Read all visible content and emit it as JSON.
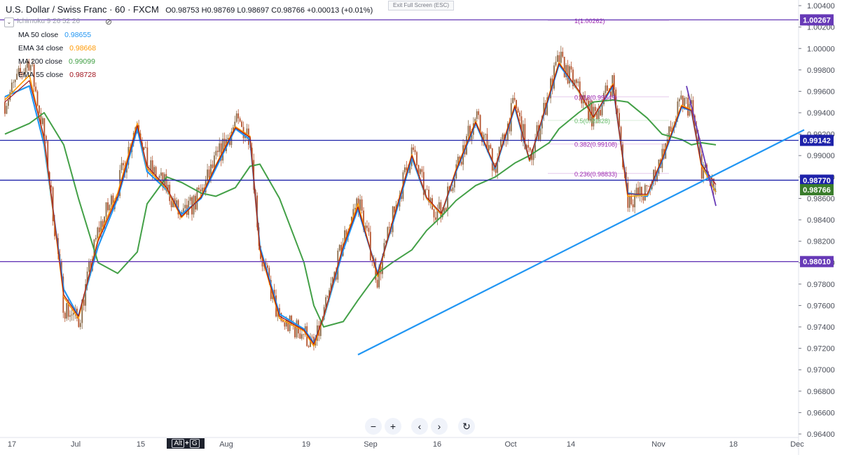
{
  "header": {
    "title": "U.S. Dollar / Swiss Franc · 60 · FXCM",
    "ohlc": "O0.98753  H0.98769  L0.98697  C0.98766  +0.00013 (+0.01%)"
  },
  "exit_fullscreen": "Exit Full Screen (ESC)",
  "ichimoku_label": "Ichimoku 9 26 52 26",
  "indicators": [
    {
      "label": "MA  50 close",
      "value": "0.98655",
      "color": "#2196f3"
    },
    {
      "label": "EMA 34 close",
      "value": "0.98668",
      "color": "#ff9800"
    },
    {
      "label": "MA  200 close",
      "value": "0.99099",
      "color": "#43a047"
    },
    {
      "label": "EMA 55 close",
      "value": "0.98728",
      "color": "#a0141e"
    }
  ],
  "toolbar": {
    "zoom_out": "−",
    "zoom_in": "+",
    "back": "‹",
    "forward": "›",
    "reset": "↻"
  },
  "shortcut": {
    "key1": "Alt",
    "plus": "+",
    "key2": "G"
  },
  "colors": {
    "purple_line": "#673ab7",
    "blue_line": "#1e22aa",
    "trend": "#2196f3",
    "candle_up": "#7a5a3a",
    "price_badge": "#3a7d2c"
  },
  "chart_data": {
    "type": "line",
    "symbol": "USDCHF",
    "timeframe": "60",
    "ylim": [
      0.964,
      1.0042
    ],
    "y_ticks": [
      "1.00400",
      "1.00200",
      "1.00000",
      "0.99800",
      "0.99600",
      "0.99400",
      "0.99200",
      "0.99000",
      "0.98800",
      "0.98600",
      "0.98400",
      "0.98200",
      "0.98000",
      "0.97800",
      "0.97600",
      "0.97400",
      "0.97200",
      "0.97000",
      "0.96800",
      "0.96600",
      "0.96400"
    ],
    "x_ticks": [
      "17",
      "Jul",
      "15",
      "Aug",
      "19",
      "Sep",
      "16",
      "Oct",
      "14",
      "Nov",
      "18",
      "Dec"
    ],
    "horizontal_levels": [
      {
        "value": 1.00267,
        "label": "1.00267",
        "color": "#673ab7"
      },
      {
        "value": 0.99142,
        "label": "0.99142",
        "color": "#1e22aa"
      },
      {
        "value": 0.9877,
        "label": "0.98770",
        "color": "#1e22aa"
      },
      {
        "value": 0.9801,
        "label": "0.98010",
        "color": "#673ab7"
      }
    ],
    "last_price": {
      "value": 0.98766,
      "label": "0.98766"
    },
    "fibonacci": [
      {
        "ratio": "1",
        "price": "(1.00262)"
      },
      {
        "ratio": "0.618",
        "price": "(0.99549)"
      },
      {
        "ratio": "0.5",
        "price": "(0.99328)"
      },
      {
        "ratio": "0.382",
        "price": "(0.99108)"
      },
      {
        "ratio": "0.236",
        "price": "(0.98833)"
      }
    ],
    "trendline": {
      "from": {
        "x": "Aug 23",
        "y": 0.9714
      },
      "to": {
        "x": "Nov 22",
        "y": 0.9924
      }
    },
    "downtrend": {
      "from": {
        "x": "Oct 29",
        "y": 0.9965
      },
      "to": {
        "x": "Nov 4",
        "y": 0.9853
      }
    },
    "close_path": {
      "x": [
        "Jun 12",
        "Jun 17",
        "Jun 20",
        "Jun 24",
        "Jun 27",
        "Jul 1",
        "Jul 5",
        "Jul 9",
        "Jul 11",
        "Jul 15",
        "Jul 18",
        "Jul 22",
        "Jul 25",
        "Jul 29",
        "Aug 1",
        "Aug 3",
        "Aug 7",
        "Aug 12",
        "Aug 14",
        "Aug 16",
        "Aug 20",
        "Aug 23",
        "Aug 27",
        "Aug 30",
        "Sep 3",
        "Sep 6",
        "Sep 9",
        "Sep 12",
        "Sep 16",
        "Sep 20",
        "Sep 24",
        "Sep 27",
        "Oct 1",
        "Oct 3",
        "Oct 7",
        "Oct 10",
        "Oct 14",
        "Oct 17",
        "Oct 21",
        "Oct 24",
        "Oct 28",
        "Oct 30",
        "Nov 1",
        "Nov 4"
      ],
      "values": [
        0.995,
        0.999,
        0.992,
        0.976,
        0.9745,
        0.983,
        0.987,
        0.9935,
        0.989,
        0.987,
        0.984,
        0.9865,
        0.9895,
        0.993,
        0.992,
        0.981,
        0.9745,
        0.9735,
        0.972,
        0.975,
        0.982,
        0.986,
        0.9785,
        0.984,
        0.9905,
        0.986,
        0.9845,
        0.989,
        0.9935,
        0.989,
        0.995,
        0.9895,
        0.996,
        0.999,
        0.996,
        0.9935,
        0.997,
        0.986,
        0.9865,
        0.99,
        0.995,
        0.9945,
        0.989,
        0.9865
      ]
    },
    "series": [
      {
        "name": "MA 50 close",
        "values": [
          0.9955,
          0.9965,
          0.991,
          0.9775,
          0.975,
          0.9815,
          0.986,
          0.9925,
          0.9885,
          0.9868,
          0.9845,
          0.986,
          0.9888,
          0.9925,
          0.9915,
          0.9815,
          0.9752,
          0.9738,
          0.9725,
          0.9748,
          0.9812,
          0.985,
          0.979,
          0.9835,
          0.9898,
          0.986,
          0.9845,
          0.9885,
          0.993,
          0.9888,
          0.9945,
          0.9895,
          0.9955,
          0.9985,
          0.996,
          0.9935,
          0.9965,
          0.9865,
          0.9862,
          0.9895,
          0.9945,
          0.9942,
          0.9893,
          0.9866
        ]
      },
      {
        "name": "EMA 34 close",
        "values": [
          0.9952,
          0.9975,
          0.9915,
          0.9768,
          0.9748,
          0.9822,
          0.9865,
          0.993,
          0.9888,
          0.9869,
          0.9842,
          0.9862,
          0.9891,
          0.9927,
          0.9918,
          0.9812,
          0.9748,
          0.9736,
          0.9722,
          0.9749,
          0.9816,
          0.9855,
          0.9787,
          0.9838,
          0.9901,
          0.986,
          0.9845,
          0.9887,
          0.9932,
          0.9889,
          0.9947,
          0.9895,
          0.9957,
          0.9987,
          0.996,
          0.9935,
          0.9967,
          0.9862,
          0.9863,
          0.9897,
          0.9947,
          0.9943,
          0.9891,
          0.9866
        ]
      },
      {
        "name": "MA 200 close",
        "values": [
          0.992,
          0.993,
          0.994,
          0.991,
          0.986,
          0.98,
          0.979,
          0.981,
          0.9855,
          0.988,
          0.9875,
          0.9865,
          0.9862,
          0.987,
          0.989,
          0.9892,
          0.986,
          0.98,
          0.976,
          0.974,
          0.9745,
          0.9765,
          0.979,
          0.98,
          0.9812,
          0.983,
          0.9843,
          0.9858,
          0.9872,
          0.988,
          0.9893,
          0.99,
          0.9912,
          0.9925,
          0.994,
          0.995,
          0.9952,
          0.995,
          0.9935,
          0.992,
          0.9915,
          0.991,
          0.9912,
          0.991
        ]
      },
      {
        "name": "EMA 55 close",
        "values": [
          0.995,
          0.997,
          0.9917,
          0.977,
          0.975,
          0.982,
          0.9862,
          0.9928,
          0.989,
          0.987,
          0.9843,
          0.9861,
          0.989,
          0.9926,
          0.9917,
          0.9813,
          0.975,
          0.9737,
          0.9724,
          0.975,
          0.9815,
          0.9852,
          0.9789,
          0.9837,
          0.99,
          0.9861,
          0.9846,
          0.9886,
          0.9931,
          0.9889,
          0.9946,
          0.9896,
          0.9956,
          0.9986,
          0.9961,
          0.9936,
          0.9966,
          0.9864,
          0.9864,
          0.9896,
          0.9946,
          0.9942,
          0.9892,
          0.9873
        ]
      }
    ]
  }
}
